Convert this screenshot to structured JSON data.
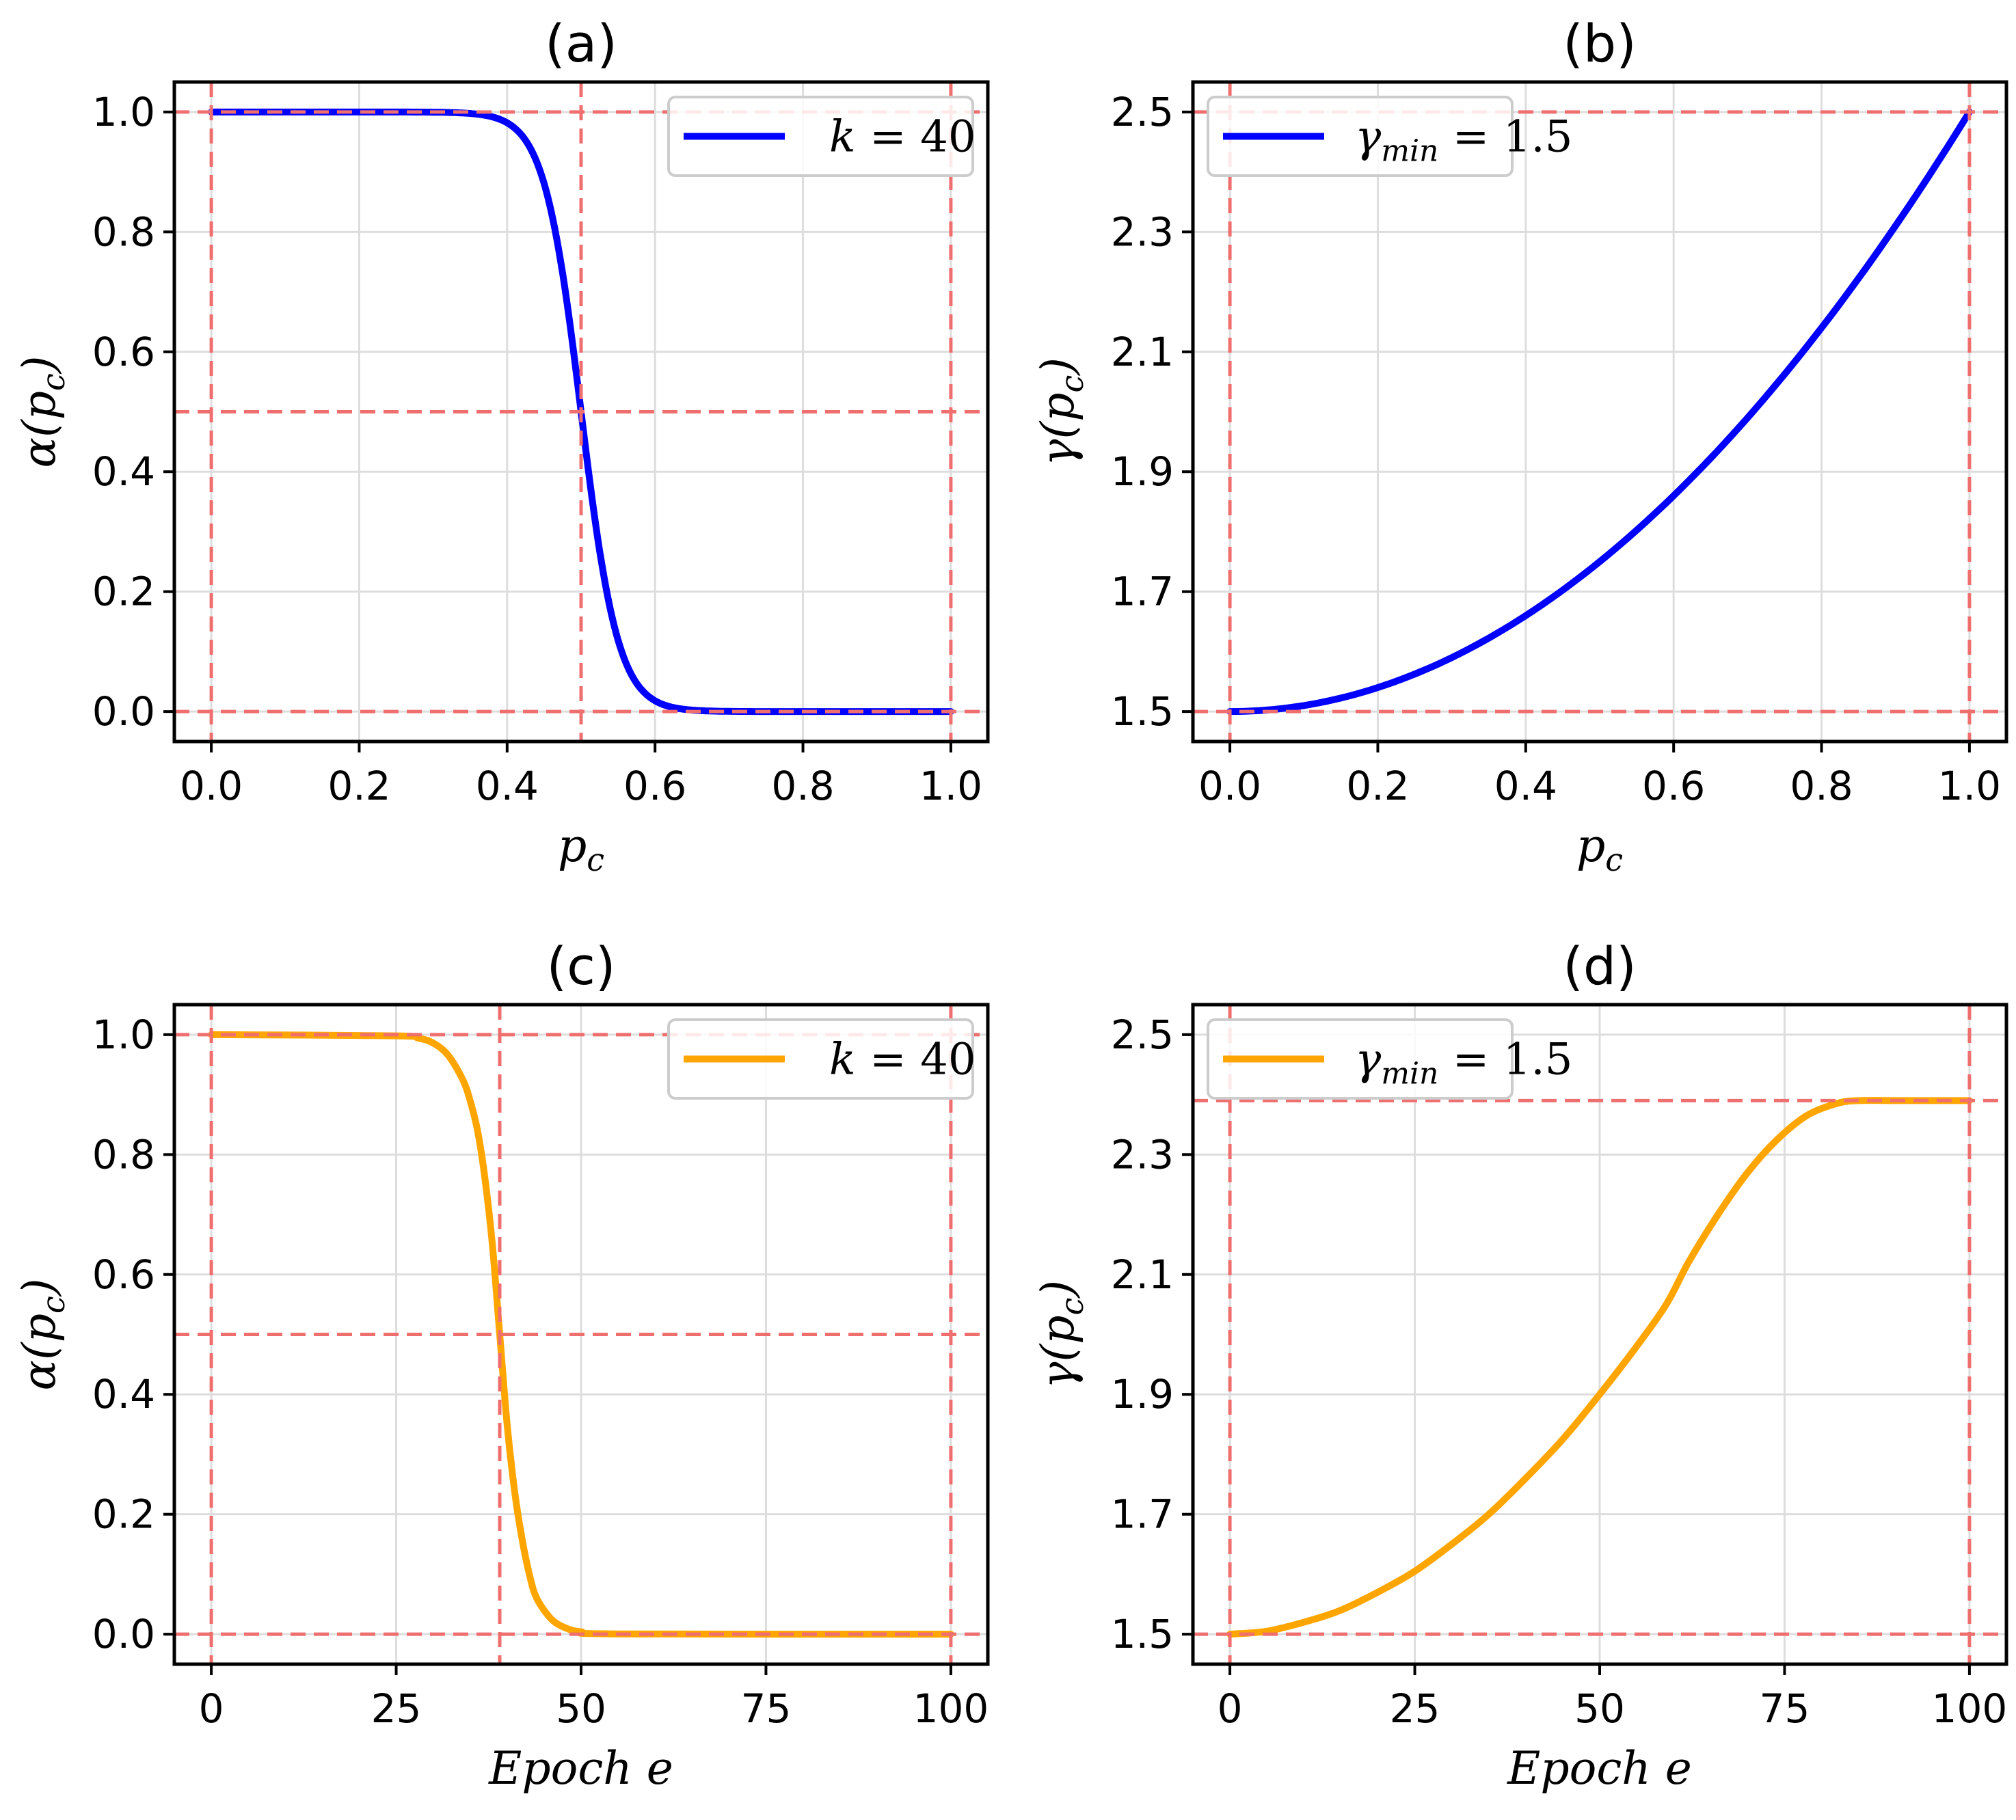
{
  "chart_data": [
    {
      "type": "line",
      "title": "(a)",
      "xlabel": "p_c",
      "ylabel": "α(p_c)",
      "xlim": [
        -0.05,
        1.05
      ],
      "ylim": [
        -0.05,
        1.05
      ],
      "xticks": [
        0.0,
        0.2,
        0.4,
        0.6,
        0.8,
        1.0
      ],
      "xtick_labels": [
        "0.0",
        "0.2",
        "0.4",
        "0.6",
        "0.8",
        "1.0"
      ],
      "yticks": [
        0.0,
        0.2,
        0.4,
        0.6,
        0.8,
        1.0
      ],
      "ytick_labels": [
        "0.0",
        "0.2",
        "0.4",
        "0.6",
        "0.8",
        "1.0"
      ],
      "grid": true,
      "legend_position": "top-right",
      "ref_lines": {
        "x": [
          0.0,
          0.5,
          1.0
        ],
        "y": [
          0.0,
          0.5,
          1.0
        ]
      },
      "series": [
        {
          "name": "k = 40",
          "color": "#0000ff",
          "x": [
            0.0,
            0.3,
            0.35,
            0.4,
            0.42,
            0.44,
            0.46,
            0.48,
            0.5,
            0.52,
            0.54,
            0.56,
            0.58,
            0.6,
            0.65,
            0.7,
            1.0
          ],
          "y": [
            1.0,
            0.9997,
            0.9975,
            0.982,
            0.961,
            0.917,
            0.832,
            0.69,
            0.5,
            0.31,
            0.168,
            0.083,
            0.039,
            0.018,
            0.0025,
            0.0003,
            0.0
          ]
        }
      ],
      "legend": [
        {
          "symbol": "k",
          "rel": "=",
          "value": "40"
        }
      ]
    },
    {
      "type": "line",
      "title": "(b)",
      "xlabel": "p_c",
      "ylabel": "γ(p_c)",
      "xlim": [
        -0.05,
        1.05
      ],
      "ylim": [
        1.45,
        2.55
      ],
      "xticks": [
        0.0,
        0.2,
        0.4,
        0.6,
        0.8,
        1.0
      ],
      "xtick_labels": [
        "0.0",
        "0.2",
        "0.4",
        "0.6",
        "0.8",
        "1.0"
      ],
      "yticks": [
        1.5,
        1.7,
        1.9,
        2.1,
        2.3,
        2.5
      ],
      "ytick_labels": [
        "1.5",
        "1.7",
        "1.9",
        "2.1",
        "2.3",
        "2.5"
      ],
      "grid": true,
      "legend_position": "top-left",
      "ref_lines": {
        "x": [
          0.0,
          1.0
        ],
        "y": [
          1.5,
          2.5
        ]
      },
      "series": [
        {
          "name": "γ_min = 1.5",
          "color": "#0000ff",
          "x": [
            0.0,
            0.1,
            0.2,
            0.3,
            0.4,
            0.5,
            0.6,
            0.7,
            0.8,
            0.9,
            1.0
          ],
          "y": [
            1.5,
            1.51,
            1.54,
            1.59,
            1.66,
            1.75,
            1.86,
            1.99,
            2.14,
            2.31,
            2.5
          ]
        }
      ],
      "legend": [
        {
          "symbol": "γ",
          "sub": "min",
          "rel": "=",
          "value": "1.5"
        }
      ]
    },
    {
      "type": "line",
      "title": "(c)",
      "xlabel": "Epoch e",
      "ylabel": "α(p_c)",
      "xlim": [
        -5,
        105
      ],
      "ylim": [
        -0.05,
        1.05
      ],
      "xticks": [
        0,
        25,
        50,
        75,
        100
      ],
      "xtick_labels": [
        "0",
        "25",
        "50",
        "75",
        "100"
      ],
      "yticks": [
        0.0,
        0.2,
        0.4,
        0.6,
        0.8,
        1.0
      ],
      "ytick_labels": [
        "0.0",
        "0.2",
        "0.4",
        "0.6",
        "0.8",
        "1.0"
      ],
      "grid": true,
      "legend_position": "top-right",
      "ref_lines": {
        "x": [
          0,
          39,
          100
        ],
        "y": [
          0.0,
          0.5,
          1.0
        ]
      },
      "series": [
        {
          "name": "k = 40",
          "color": "#ffa500",
          "x": [
            0,
            25,
            28,
            30,
            32,
            34,
            35,
            36,
            37,
            38,
            39,
            40,
            41,
            42,
            43,
            44,
            46,
            48,
            50,
            55,
            100
          ],
          "y": [
            1.0,
            0.998,
            0.994,
            0.986,
            0.966,
            0.925,
            0.89,
            0.84,
            0.76,
            0.65,
            0.5,
            0.35,
            0.24,
            0.16,
            0.1,
            0.06,
            0.025,
            0.01,
            0.004,
            0.0005,
            0.0
          ]
        }
      ],
      "legend": [
        {
          "symbol": "k",
          "rel": "=",
          "value": "40"
        }
      ]
    },
    {
      "type": "line",
      "title": "(d)",
      "xlabel": "Epoch e",
      "ylabel": "γ(p_c)",
      "xlim": [
        -5,
        105
      ],
      "ylim": [
        1.45,
        2.55
      ],
      "xticks": [
        0,
        25,
        50,
        75,
        100
      ],
      "xtick_labels": [
        "0",
        "25",
        "50",
        "75",
        "100"
      ],
      "yticks": [
        1.5,
        1.7,
        1.9,
        2.1,
        2.3,
        2.5
      ],
      "ytick_labels": [
        "1.5",
        "1.7",
        "1.9",
        "2.1",
        "2.3",
        "2.5"
      ],
      "grid": true,
      "legend_position": "top-left",
      "ref_lines": {
        "x": [
          0,
          100
        ],
        "y": [
          1.5,
          2.39
        ]
      },
      "series": [
        {
          "name": "γ_min = 1.5",
          "color": "#ffa500",
          "x": [
            0,
            5,
            10,
            15,
            20,
            25,
            30,
            35,
            40,
            45,
            50,
            55,
            59,
            62,
            66,
            70,
            74,
            78,
            82,
            85,
            90,
            100
          ],
          "y": [
            1.5,
            1.505,
            1.52,
            1.54,
            1.57,
            1.605,
            1.65,
            1.7,
            1.76,
            1.825,
            1.9,
            1.98,
            2.05,
            2.12,
            2.2,
            2.27,
            2.325,
            2.365,
            2.385,
            2.39,
            2.39,
            2.39
          ]
        }
      ],
      "legend": [
        {
          "symbol": "γ",
          "sub": "min",
          "rel": "=",
          "value": "1.5"
        }
      ]
    }
  ]
}
